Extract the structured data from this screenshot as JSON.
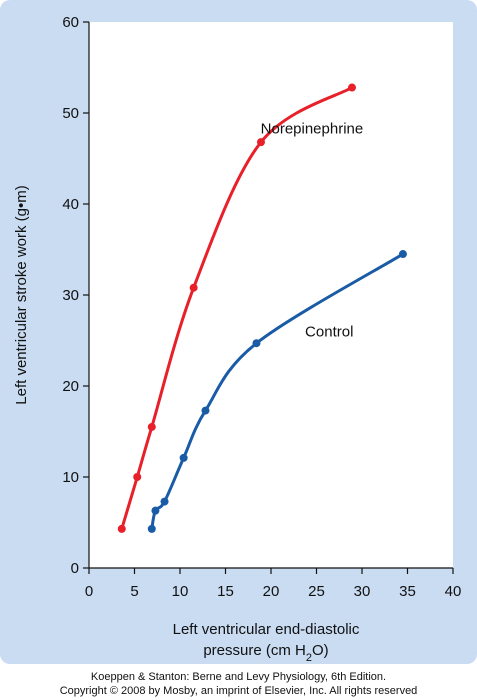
{
  "chart_data": {
    "type": "line",
    "ylabel": "Left ventricular stroke work (g•m)",
    "xlabel_line1": "Left ventricular end-diastolic",
    "xlabel_line2_pre": "pressure (cm H",
    "xlabel_line2_sub": "2",
    "xlabel_line2_post": "O)",
    "xlim": [
      0,
      40
    ],
    "ylim": [
      0,
      60
    ],
    "x_ticks": [
      0,
      5,
      10,
      15,
      20,
      25,
      30,
      35,
      40
    ],
    "y_ticks": [
      0,
      10,
      20,
      30,
      40,
      50,
      60
    ],
    "grid": false,
    "series": [
      {
        "name": "Norepinephrine",
        "color": "#e8202a",
        "x": [
          3.6,
          5.3,
          6.9,
          11.5,
          18.9,
          28.9
        ],
        "y": [
          4.3,
          10.0,
          15.5,
          30.8,
          46.8,
          52.8
        ]
      },
      {
        "name": "Control",
        "color": "#1a5ba6",
        "x": [
          6.9,
          7.3,
          8.3,
          10.4,
          12.8,
          18.4,
          34.5
        ],
        "y": [
          4.3,
          6.3,
          7.3,
          12.1,
          17.3,
          24.7,
          34.5
        ]
      }
    ]
  },
  "credit": {
    "line1": "Koeppen & Stanton: Berne and Levy Physiology, 6th Edition.",
    "line2": "Copyright © 2008 by Mosby, an imprint of Elsevier, Inc. All rights reserved"
  }
}
